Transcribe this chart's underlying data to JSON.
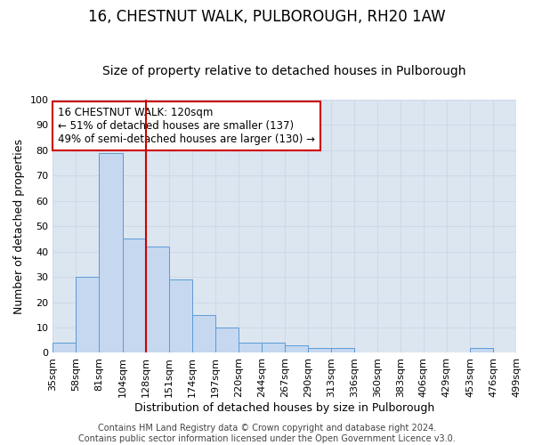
{
  "title": "16, CHESTNUT WALK, PULBOROUGH, RH20 1AW",
  "subtitle": "Size of property relative to detached houses in Pulborough",
  "xlabel": "Distribution of detached houses by size in Pulborough",
  "ylabel": "Number of detached properties",
  "bar_values": [
    4,
    30,
    79,
    45,
    42,
    29,
    15,
    10,
    4,
    4,
    3,
    2,
    2,
    0,
    0,
    0,
    0,
    0,
    2,
    0
  ],
  "bar_labels": [
    "35sqm",
    "58sqm",
    "81sqm",
    "104sqm",
    "128sqm",
    "151sqm",
    "174sqm",
    "197sqm",
    "220sqm",
    "244sqm",
    "267sqm",
    "290sqm",
    "313sqm",
    "336sqm",
    "360sqm",
    "383sqm",
    "406sqm",
    "429sqm",
    "453sqm",
    "476sqm",
    "499sqm"
  ],
  "bar_color": "#c5d8f0",
  "bar_edge_color": "#5b9bd5",
  "grid_color": "#d0d8e8",
  "background_color": "#dce6f1",
  "annotation_box_text": "16 CHESTNUT WALK: 120sqm\n← 51% of detached houses are smaller (137)\n49% of semi-detached houses are larger (130) →",
  "annotation_box_color": "#ffffff",
  "annotation_box_edge_color": "#cc0000",
  "vline_color": "#cc0000",
  "footer_text": "Contains HM Land Registry data © Crown copyright and database right 2024.\nContains public sector information licensed under the Open Government Licence v3.0.",
  "ylim": [
    0,
    100
  ],
  "title_fontsize": 12,
  "subtitle_fontsize": 10,
  "tick_fontsize": 8,
  "ylabel_fontsize": 9,
  "xlabel_fontsize": 9,
  "footer_fontsize": 7,
  "annotation_fontsize": 8.5
}
